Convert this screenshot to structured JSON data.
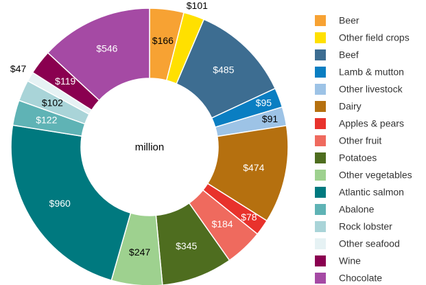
{
  "chart_data": {
    "type": "donut",
    "center_text": "million",
    "categories": [
      "Beer",
      "Other field crops",
      "Beef",
      "Lamb & mutton",
      "Other livestock",
      "Dairy",
      "Apples & pears",
      "Other fruit",
      "Potatoes",
      "Other vegetables",
      "Atlantic salmon",
      "Abalone",
      "Rock lobster",
      "Other seafood",
      "Wine",
      "Chocolate"
    ],
    "values": [
      166,
      101,
      485,
      95,
      91,
      474,
      78,
      184,
      345,
      247,
      960,
      122,
      102,
      47,
      119,
      546
    ],
    "value_labels": [
      "$166",
      "$101",
      "$485",
      "$95",
      "$91",
      "$474",
      "$78",
      "$184",
      "$345",
      "$247",
      "$960",
      "$122",
      "$102",
      "$47",
      "$119",
      "$546"
    ],
    "colors": [
      "#f7a233",
      "#ffe000",
      "#3d6d91",
      "#0a7ec2",
      "#9dc3e6",
      "#b5700f",
      "#e8322c",
      "#ef6a5e",
      "#4e6d1f",
      "#9ed18f",
      "#00797f",
      "#5fb3b5",
      "#a9d4d8",
      "#e6f2f4",
      "#8a0050",
      "#a54aa4"
    ],
    "legend": "right"
  }
}
